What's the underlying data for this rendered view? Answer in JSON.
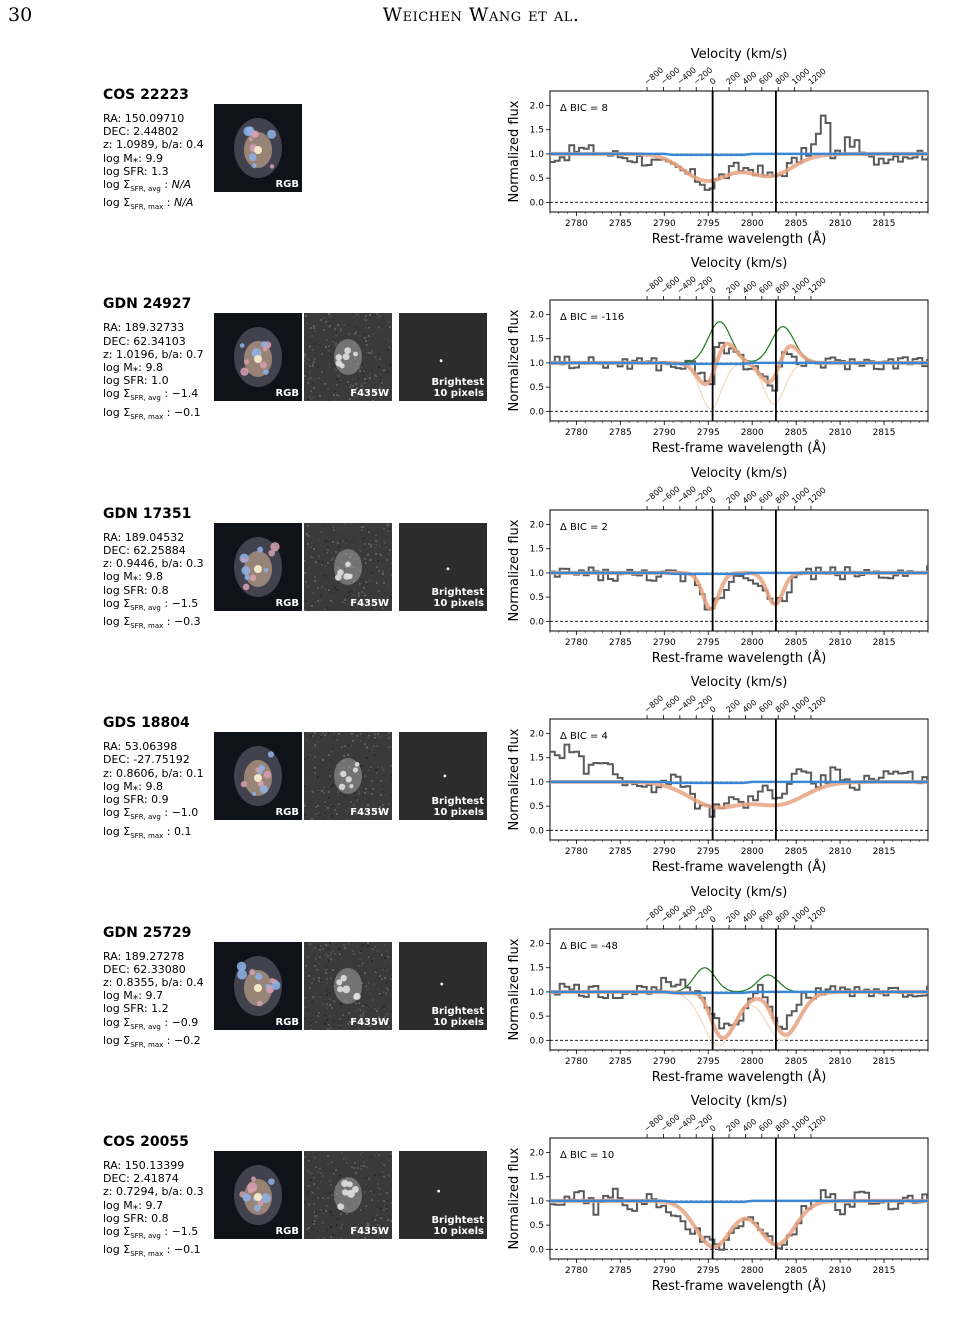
{
  "header": {
    "page_number": "30",
    "running_title": "Weichen Wang et al."
  },
  "thumb_labels": {
    "rgb": "RGB",
    "f435w": "F435W",
    "brightest": "Brightest\n10 pixels"
  },
  "axes": {
    "xlabel": "Rest-frame wavelength (Å)",
    "ylabel": "Normalized flux",
    "top_label": "Velocity (km/s)",
    "xticks": [
      "2780",
      "2785",
      "2790",
      "2795",
      "2800",
      "2805",
      "2810",
      "2815"
    ],
    "yticks": [
      "0.0",
      "0.5",
      "1.0",
      "1.5",
      "2.0"
    ],
    "vticks": [
      "−800",
      "−600",
      "−400",
      "−200",
      "0",
      "200",
      "400",
      "600",
      "800",
      "1000",
      "1200"
    ]
  },
  "colors": {
    "data": "#5a5a5a",
    "fit": "#e8a383",
    "continuum": "#3b87d4",
    "emission": "#1d7a1d",
    "absorption_component": "#f0d4b0"
  },
  "panels": [
    {
      "name": "COS 22223",
      "ra": "RA: 150.09710",
      "dec": "DEC: 2.44802",
      "zba": "z: 1.0989, b/a: 0.4",
      "mass": "log M⁎: 9.9",
      "sfr": "log SFR: 1.3",
      "sigma_avg": "N/A",
      "sigma_max": "N/A",
      "dbic": "Δ BIC = 8",
      "f435w": false
    },
    {
      "name": "GDN 24927",
      "ra": "RA: 189.32733",
      "dec": "DEC: 62.34103",
      "zba": "z: 1.0196, b/a: 0.7",
      "mass": "log M⁎: 9.8",
      "sfr": "log SFR: 1.0",
      "sigma_avg": "−1.4",
      "sigma_max": "−0.1",
      "dbic": "Δ BIC = -116",
      "f435w": true
    },
    {
      "name": "GDN 17351",
      "ra": "RA: 189.04532",
      "dec": "DEC: 62.25884",
      "zba": "z: 0.9446, b/a: 0.3",
      "mass": "log M⁎: 9.8",
      "sfr": "log SFR: 0.8",
      "sigma_avg": "−1.5",
      "sigma_max": "−0.3",
      "dbic": "Δ BIC = 2",
      "f435w": true
    },
    {
      "name": "GDS 18804",
      "ra": "RA: 53.06398",
      "dec": "DEC: -27.75192",
      "zba": "z: 0.8606, b/a: 0.1",
      "mass": "log M⁎: 9.8",
      "sfr": "log SFR: 0.9",
      "sigma_avg": "−1.0",
      "sigma_max": "0.1",
      "dbic": "Δ BIC = 4",
      "f435w": true
    },
    {
      "name": "GDN 25729",
      "ra": "RA: 189.27278",
      "dec": "DEC: 62.33080",
      "zba": "z: 0.8355, b/a: 0.4",
      "mass": "log M⁎: 9.7",
      "sfr": "log SFR: 1.2",
      "sigma_avg": "−0.9",
      "sigma_max": "−0.2",
      "dbic": "Δ BIC = -48",
      "f435w": true
    },
    {
      "name": "COS 20055",
      "ra": "RA: 150.13399",
      "dec": "DEC: 2.41874",
      "zba": "z: 0.7294, b/a: 0.3",
      "mass": "log M⁎: 9.7",
      "sfr": "log SFR: 0.8",
      "sigma_avg": "−1.5",
      "sigma_max": "−0.1",
      "dbic": "Δ BIC = 10",
      "f435w": true
    }
  ],
  "chart_data": [
    {
      "type": "line",
      "title": "COS 22223",
      "xlim": [
        2777,
        2820
      ],
      "ylim": [
        -0.2,
        2.3
      ],
      "xlabel": "Rest-frame wavelength (Å)",
      "ylabel": "Normalized flux",
      "lines_at": [
        2795.5,
        2802.7
      ],
      "fit": {
        "continuum": 1.0,
        "abs": [
          {
            "center": 2794.8,
            "depth": 0.55,
            "sigma": 2.6
          },
          {
            "center": 2802.0,
            "depth": 0.45,
            "sigma": 2.6
          }
        ],
        "emission": []
      },
      "observed_profile": {
        "center_flux": [
          [
            2778,
            0.95
          ],
          [
            2780,
            1.1
          ],
          [
            2782,
            1.05
          ],
          [
            2785,
            0.95
          ],
          [
            2787,
            0.9
          ],
          [
            2789,
            0.8
          ],
          [
            2791,
            0.7
          ],
          [
            2793,
            0.55
          ],
          [
            2795,
            0.3
          ],
          [
            2796,
            0.5
          ],
          [
            2798,
            0.7
          ],
          [
            2800,
            0.7
          ],
          [
            2802,
            0.5
          ],
          [
            2803,
            0.6
          ],
          [
            2805,
            0.9
          ],
          [
            2807,
            1.2
          ],
          [
            2808,
            1.9
          ],
          [
            2809,
            0.9
          ],
          [
            2811,
            1.3
          ],
          [
            2813,
            0.85
          ],
          [
            2815,
            0.95
          ],
          [
            2818,
            1.0
          ]
        ]
      }
    },
    {
      "type": "line",
      "title": "GDN 24927",
      "xlim": [
        2777,
        2820
      ],
      "ylim": [
        -0.2,
        2.3
      ],
      "xlabel": "Rest-frame wavelength (Å)",
      "ylabel": "Normalized flux",
      "lines_at": [
        2795.5,
        2802.7
      ],
      "fit": {
        "continuum": 1.0,
        "abs": [
          {
            "center": 2795.3,
            "depth": 0.95,
            "sigma": 1.2
          },
          {
            "center": 2802.5,
            "depth": 0.85,
            "sigma": 1.2
          }
        ],
        "emission": [
          {
            "center": 2796.3,
            "amp": 0.85,
            "sigma": 1.3
          },
          {
            "center": 2803.5,
            "amp": 0.75,
            "sigma": 1.3
          }
        ]
      },
      "observed_profile": {
        "center_flux": [
          [
            2778,
            1.05
          ],
          [
            2781,
            1.0
          ],
          [
            2784,
            0.98
          ],
          [
            2787,
            1.02
          ],
          [
            2790,
            0.95
          ],
          [
            2793,
            0.95
          ],
          [
            2795,
            0.5
          ],
          [
            2796,
            1.6
          ],
          [
            2797,
            1.2
          ],
          [
            2799,
            1.0
          ],
          [
            2801,
            0.8
          ],
          [
            2802,
            0.3
          ],
          [
            2803,
            1.1
          ],
          [
            2805,
            1.0
          ],
          [
            2808,
            1.0
          ],
          [
            2812,
            1.0
          ],
          [
            2816,
            1.0
          ],
          [
            2819,
            1.05
          ]
        ]
      }
    },
    {
      "type": "line",
      "title": "GDN 17351",
      "xlim": [
        2777,
        2820
      ],
      "ylim": [
        -0.2,
        2.3
      ],
      "xlabel": "Rest-frame wavelength (Å)",
      "ylabel": "Normalized flux",
      "lines_at": [
        2795.5,
        2802.7
      ],
      "fit": {
        "continuum": 1.0,
        "abs": [
          {
            "center": 2795.3,
            "depth": 0.75,
            "sigma": 0.9
          },
          {
            "center": 2802.6,
            "depth": 0.65,
            "sigma": 0.9
          }
        ],
        "emission": []
      },
      "observed_profile": {
        "center_flux": [
          [
            2778,
            1.0
          ],
          [
            2781,
            1.0
          ],
          [
            2784,
            0.95
          ],
          [
            2787,
            0.95
          ],
          [
            2790,
            0.95
          ],
          [
            2793,
            0.85
          ],
          [
            2795,
            0.2
          ],
          [
            2796,
            0.5
          ],
          [
            2798,
            1.0
          ],
          [
            2800,
            0.95
          ],
          [
            2802,
            0.3
          ],
          [
            2803,
            0.4
          ],
          [
            2805,
            1.0
          ],
          [
            2810,
            1.0
          ],
          [
            2815,
            1.0
          ],
          [
            2819,
            1.0
          ]
        ]
      }
    },
    {
      "type": "line",
      "title": "GDS 18804",
      "xlim": [
        2777,
        2820
      ],
      "ylim": [
        -0.2,
        2.3
      ],
      "xlabel": "Rest-frame wavelength (Å)",
      "ylabel": "Normalized flux",
      "lines_at": [
        2795.5,
        2802.7
      ],
      "fit": {
        "continuum": 1.0,
        "abs": [
          {
            "center": 2795.8,
            "depth": 0.5,
            "sigma": 3.0
          },
          {
            "center": 2803.0,
            "depth": 0.45,
            "sigma": 3.0
          }
        ],
        "emission": []
      },
      "observed_profile": {
        "center_flux": [
          [
            2778,
            1.5
          ],
          [
            2779,
            1.8
          ],
          [
            2781,
            1.2
          ],
          [
            2783,
            1.4
          ],
          [
            2785,
            0.9
          ],
          [
            2787,
            1.0
          ],
          [
            2789,
            0.8
          ],
          [
            2791,
            1.2
          ],
          [
            2793,
            0.6
          ],
          [
            2795,
            0.4
          ],
          [
            2797,
            0.6
          ],
          [
            2799,
            0.5
          ],
          [
            2801,
            0.8
          ],
          [
            2803,
            0.7
          ],
          [
            2805,
            1.3
          ],
          [
            2807,
            0.9
          ],
          [
            2809,
            1.2
          ],
          [
            2811,
            0.9
          ],
          [
            2813,
            1.1
          ],
          [
            2816,
            1.2
          ],
          [
            2819,
            1.0
          ]
        ]
      }
    },
    {
      "type": "line",
      "title": "GDN 25729",
      "xlim": [
        2777,
        2820
      ],
      "ylim": [
        -0.2,
        2.3
      ],
      "xlabel": "Rest-frame wavelength (Å)",
      "ylabel": "Normalized flux",
      "lines_at": [
        2795.5,
        2802.7
      ],
      "fit": {
        "continuum": 1.0,
        "abs": [
          {
            "center": 2796.2,
            "depth": 1.1,
            "sigma": 1.8
          },
          {
            "center": 2803.4,
            "depth": 1.0,
            "sigma": 1.8
          }
        ],
        "emission": [
          {
            "center": 2794.6,
            "amp": 0.5,
            "sigma": 1.2
          },
          {
            "center": 2801.8,
            "amp": 0.35,
            "sigma": 1.2
          }
        ]
      },
      "observed_profile": {
        "center_flux": [
          [
            2778,
            1.05
          ],
          [
            2781,
            1.0
          ],
          [
            2784,
            0.95
          ],
          [
            2787,
            1.0
          ],
          [
            2790,
            1.2
          ],
          [
            2792,
            1.3
          ],
          [
            2794,
            0.9
          ],
          [
            2796,
            0.3
          ],
          [
            2798,
            0.4
          ],
          [
            2800,
            0.9
          ],
          [
            2801,
            1.1
          ],
          [
            2802,
            0.5
          ],
          [
            2803,
            0.1
          ],
          [
            2804,
            0.5
          ],
          [
            2806,
            1.0
          ],
          [
            2810,
            1.0
          ],
          [
            2815,
            1.0
          ],
          [
            2819,
            1.0
          ]
        ]
      }
    },
    {
      "type": "line",
      "title": "COS 20055",
      "xlim": [
        2777,
        2820
      ],
      "ylim": [
        -0.2,
        2.3
      ],
      "xlabel": "Rest-frame wavelength (Å)",
      "ylabel": "Normalized flux",
      "lines_at": [
        2795.5,
        2802.7
      ],
      "fit": {
        "continuum": 1.0,
        "abs": [
          {
            "center": 2795.6,
            "depth": 0.95,
            "sigma": 2.0
          },
          {
            "center": 2802.8,
            "depth": 0.9,
            "sigma": 2.0
          }
        ],
        "emission": []
      },
      "observed_profile": {
        "center_flux": [
          [
            2778,
            0.9
          ],
          [
            2780,
            1.3
          ],
          [
            2782,
            0.8
          ],
          [
            2784,
            1.2
          ],
          [
            2786,
            0.8
          ],
          [
            2788,
            1.1
          ],
          [
            2790,
            0.7
          ],
          [
            2792,
            0.6
          ],
          [
            2794,
            0.2
          ],
          [
            2796,
            0.0
          ],
          [
            2798,
            0.4
          ],
          [
            2800,
            0.7
          ],
          [
            2801,
            0.4
          ],
          [
            2803,
            0.0
          ],
          [
            2804,
            0.2
          ],
          [
            2806,
            0.9
          ],
          [
            2808,
            1.2
          ],
          [
            2810,
            0.8
          ],
          [
            2812,
            1.2
          ],
          [
            2815,
            0.9
          ],
          [
            2818,
            1.1
          ]
        ]
      }
    }
  ]
}
